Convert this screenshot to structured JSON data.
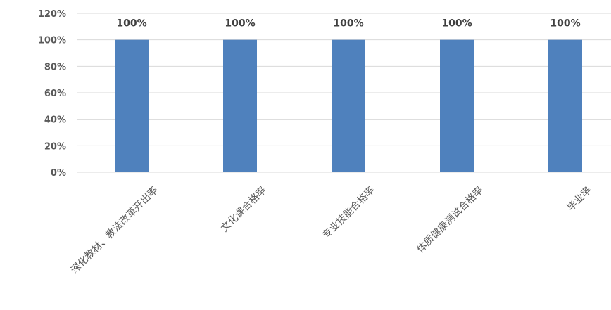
{
  "chart_data": {
    "type": "bar",
    "categories": [
      "深化教材、教法改革开出率",
      "文化课合格率",
      "专业技能合格率",
      "体质健康测试合格率",
      "毕业率"
    ],
    "values": [
      100,
      100,
      100,
      100,
      100
    ],
    "data_labels": [
      "100%",
      "100%",
      "100%",
      "100%",
      "100%"
    ],
    "yticks": [
      "0%",
      "20%",
      "40%",
      "60%",
      "80%",
      "100%",
      "120%"
    ],
    "ylim": [
      0,
      120
    ],
    "title": "",
    "xlabel": "",
    "ylabel": "",
    "grid": true,
    "legend": "none",
    "bar_color": "#4F81BD",
    "grid_color": "#D9D9D9"
  }
}
